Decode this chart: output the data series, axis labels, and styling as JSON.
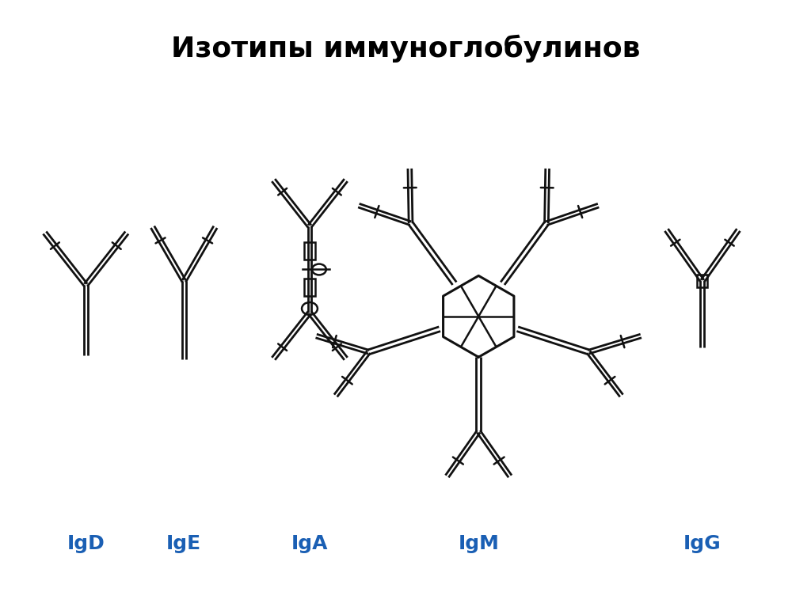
{
  "title": "Изотипы иммуноглобулинов",
  "title_fontsize": 26,
  "title_fontweight": "bold",
  "background_color": "#ffffff",
  "label_color": "#1a5fb4",
  "label_fontsize": 18,
  "label_fontweight": "bold",
  "labels": [
    "IgD",
    "IgE",
    "IgA",
    "IgM",
    "IgG"
  ],
  "line_color": "#111111",
  "line_width": 2.0
}
